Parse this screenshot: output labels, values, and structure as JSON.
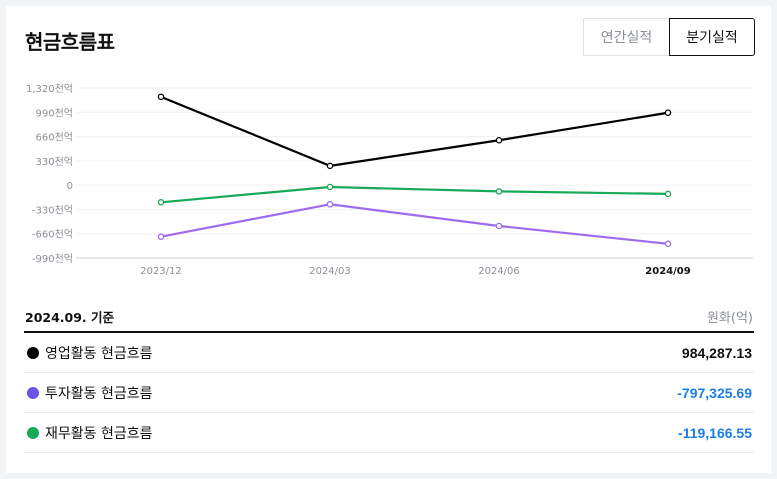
{
  "title": "현금흐름표",
  "toggle": {
    "annual": "연간실적",
    "quarterly": "분기실적"
  },
  "table": {
    "as_of": "2024.09. 기준",
    "unit": "원화(억)",
    "rows": [
      {
        "label": "영업활동 현금흐름",
        "value": "984,287.13",
        "dot_color": "#000000",
        "value_color": "#111111"
      },
      {
        "label": "투자활동 현금흐름",
        "value": "-797,325.69",
        "dot_color": "#6b52e8",
        "value_color": "#1a7ee6"
      },
      {
        "label": "재무활동 현금흐름",
        "value": "-119,166.55",
        "dot_color": "#17a957",
        "value_color": "#1a7ee6"
      }
    ]
  },
  "chart_data": {
    "type": "line",
    "x": [
      "2023/12",
      "2024/03",
      "2024/06",
      "2024/09"
    ],
    "highlight_x": "2024/09",
    "y_ticks": [
      1320,
      990,
      660,
      330,
      0,
      -330,
      -660,
      -990
    ],
    "y_tick_labels": [
      "1,320천억",
      "990천억",
      "660천억",
      "330천억",
      "0",
      "-330천억",
      "-660천억",
      "-990천억"
    ],
    "ylim": [
      -990,
      1320
    ],
    "series": [
      {
        "key": "operating",
        "color": "#000000",
        "values": [
          1200,
          262,
          610,
          984
        ]
      },
      {
        "key": "investing",
        "color": "#9d6bf0",
        "values": [
          -700,
          -260,
          -555,
          -797
        ]
      },
      {
        "key": "financing",
        "color": "#17a957",
        "values": [
          -233,
          -25,
          -85,
          -119
        ]
      }
    ]
  }
}
